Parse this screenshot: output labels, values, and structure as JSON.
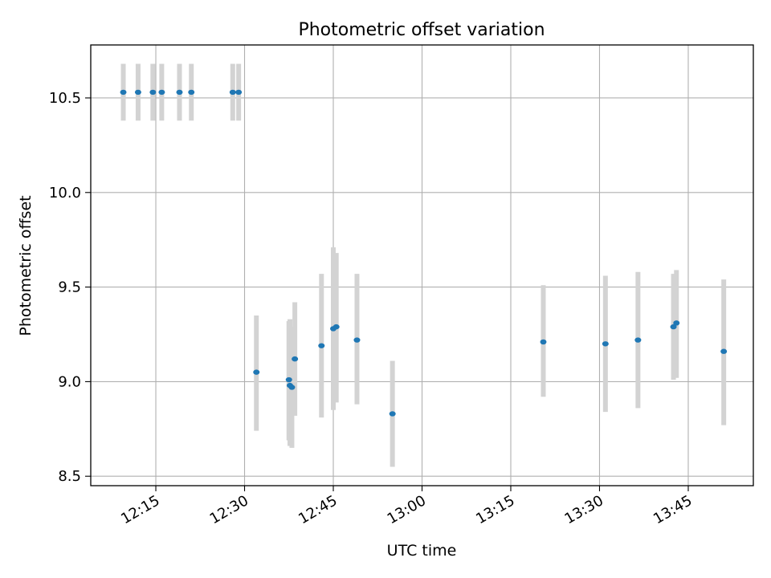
{
  "chart_data": {
    "type": "scatter",
    "title": "Photometric offset variation",
    "xlabel": "UTC time",
    "ylabel": "Photometric offset",
    "xlim": [
      "12:04",
      "13:56"
    ],
    "ylim": [
      8.45,
      10.78
    ],
    "xticks": [
      "12:15",
      "12:30",
      "12:45",
      "13:00",
      "13:15",
      "13:30",
      "13:45"
    ],
    "yticks": [
      "8.5",
      "9.0",
      "9.5",
      "10.0",
      "10.5"
    ],
    "grid": true,
    "marker_color": "#1f77b4",
    "errorbar_color": "#d3d3d3",
    "points": [
      {
        "t": "12:09:30",
        "y": 10.53,
        "ylo": 10.38,
        "yhi": 10.68
      },
      {
        "t": "12:12:00",
        "y": 10.53,
        "ylo": 10.38,
        "yhi": 10.68
      },
      {
        "t": "12:14:30",
        "y": 10.53,
        "ylo": 10.38,
        "yhi": 10.68
      },
      {
        "t": "12:16:00",
        "y": 10.53,
        "ylo": 10.38,
        "yhi": 10.68
      },
      {
        "t": "12:19:00",
        "y": 10.53,
        "ylo": 10.38,
        "yhi": 10.68
      },
      {
        "t": "12:21:00",
        "y": 10.53,
        "ylo": 10.38,
        "yhi": 10.68
      },
      {
        "t": "12:28:00",
        "y": 10.53,
        "ylo": 10.38,
        "yhi": 10.68
      },
      {
        "t": "12:29:00",
        "y": 10.53,
        "ylo": 10.38,
        "yhi": 10.68
      },
      {
        "t": "12:32:00",
        "y": 9.05,
        "ylo": 8.74,
        "yhi": 9.35
      },
      {
        "t": "12:37:30",
        "y": 9.01,
        "ylo": 8.69,
        "yhi": 9.32
      },
      {
        "t": "12:37:40",
        "y": 8.98,
        "ylo": 8.66,
        "yhi": 9.33
      },
      {
        "t": "12:38:00",
        "y": 8.97,
        "ylo": 8.65,
        "yhi": 9.29
      },
      {
        "t": "12:38:30",
        "y": 9.12,
        "ylo": 8.82,
        "yhi": 9.42
      },
      {
        "t": "12:43:00",
        "y": 9.19,
        "ylo": 8.81,
        "yhi": 9.57
      },
      {
        "t": "12:45:00",
        "y": 9.28,
        "ylo": 8.85,
        "yhi": 9.71
      },
      {
        "t": "12:45:30",
        "y": 9.29,
        "ylo": 8.89,
        "yhi": 9.68
      },
      {
        "t": "12:49:00",
        "y": 9.22,
        "ylo": 8.88,
        "yhi": 9.57
      },
      {
        "t": "12:55:00",
        "y": 8.83,
        "ylo": 8.55,
        "yhi": 9.11
      },
      {
        "t": "13:20:30",
        "y": 9.21,
        "ylo": 8.92,
        "yhi": 9.51
      },
      {
        "t": "13:31:00",
        "y": 9.2,
        "ylo": 8.84,
        "yhi": 9.56
      },
      {
        "t": "13:36:30",
        "y": 9.22,
        "ylo": 8.86,
        "yhi": 9.58
      },
      {
        "t": "13:42:30",
        "y": 9.29,
        "ylo": 9.01,
        "yhi": 9.57
      },
      {
        "t": "13:43:00",
        "y": 9.31,
        "ylo": 9.02,
        "yhi": 9.59
      },
      {
        "t": "13:51:00",
        "y": 9.16,
        "ylo": 8.77,
        "yhi": 9.54
      }
    ]
  }
}
